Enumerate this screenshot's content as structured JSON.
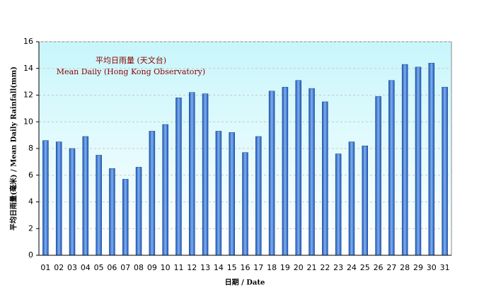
{
  "chart_data": {
    "type": "bar",
    "annotation_zh": "平均日雨量 (天文台)",
    "annotation_en": "Mean Daily (Hong Kong Observatory)",
    "y_label": "平均日雨量(毫米) / Mean Daily Rainfall(mm)",
    "x_label": "日期 / Date",
    "categories": [
      "01",
      "02",
      "03",
      "04",
      "05",
      "06",
      "07",
      "08",
      "09",
      "10",
      "11",
      "12",
      "13",
      "14",
      "15",
      "16",
      "17",
      "18",
      "19",
      "20",
      "21",
      "22",
      "23",
      "24",
      "25",
      "26",
      "27",
      "28",
      "29",
      "30",
      "31"
    ],
    "values": [
      8.6,
      8.5,
      8.0,
      8.9,
      7.5,
      6.5,
      5.7,
      6.6,
      9.3,
      9.8,
      11.8,
      12.2,
      12.1,
      9.3,
      9.2,
      7.7,
      8.9,
      12.3,
      12.6,
      13.1,
      12.5,
      11.5,
      7.6,
      8.5,
      8.2,
      11.9,
      13.1,
      14.3,
      14.1,
      14.4,
      12.6
    ],
    "color": "#1f56b5",
    "ylim": [
      0,
      16
    ],
    "yticks": [
      0,
      2,
      4,
      6,
      8,
      10,
      12,
      14,
      16
    ],
    "grid": true
  }
}
